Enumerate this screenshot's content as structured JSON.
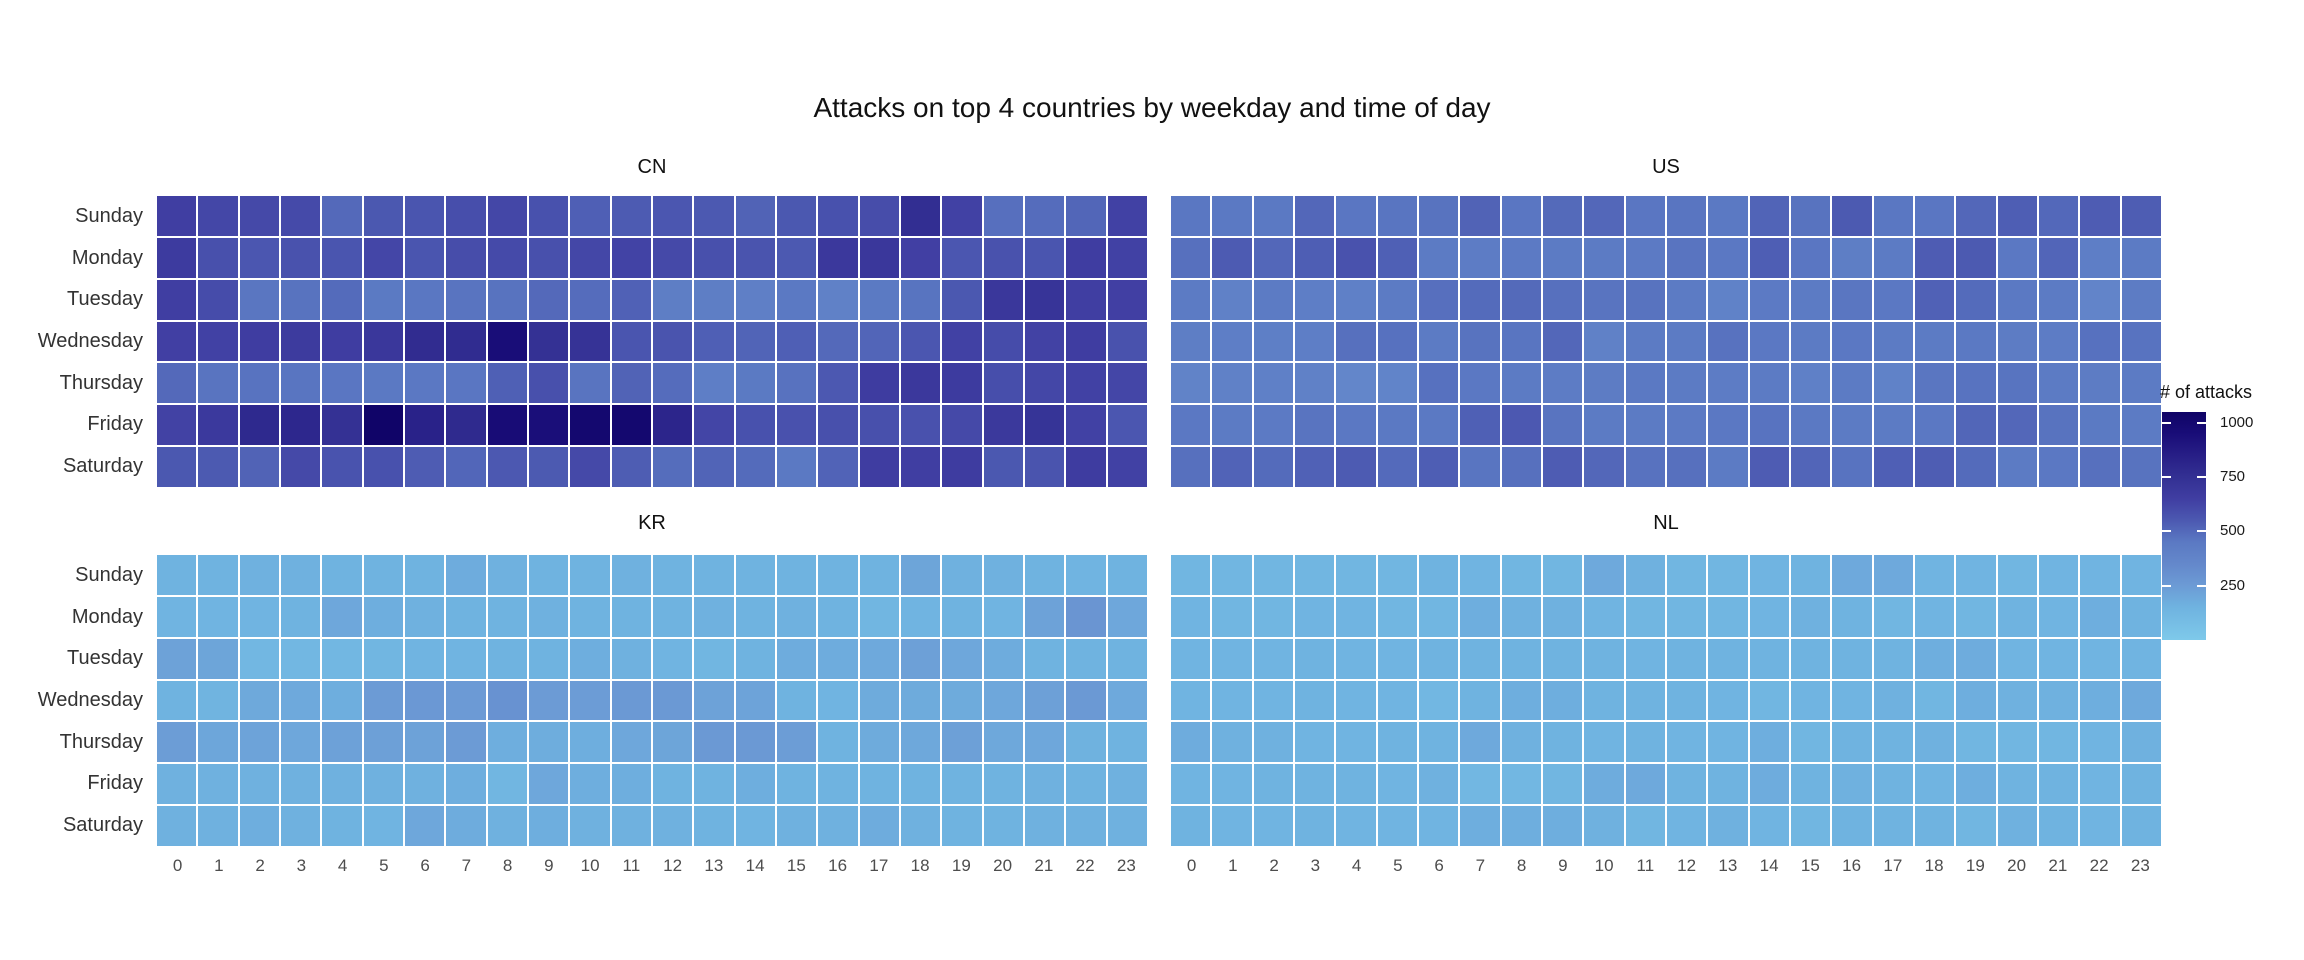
{
  "title": "Attacks on top 4 countries by weekday and time of day",
  "legend": {
    "title": "# of attacks",
    "ticks": [
      1000,
      750,
      500,
      250
    ]
  },
  "axes": {
    "weekdays": [
      "Sunday",
      "Monday",
      "Tuesday",
      "Wednesday",
      "Thursday",
      "Friday",
      "Saturday"
    ],
    "hours": [
      "0",
      "1",
      "2",
      "3",
      "4",
      "5",
      "6",
      "7",
      "8",
      "9",
      "10",
      "11",
      "12",
      "13",
      "14",
      "15",
      "16",
      "17",
      "18",
      "19",
      "20",
      "21",
      "22",
      "23"
    ]
  },
  "colors": {
    "background": "#ffffff",
    "cell_border": "#ffffff",
    "axis_text": "#333333",
    "hour_text": "#4d4d4d",
    "title_text": "#111111",
    "scale_stops": [
      [
        0,
        "#7ec9ea"
      ],
      [
        150,
        "#6fb3e0"
      ],
      [
        250,
        "#6c9bd5"
      ],
      [
        350,
        "#6488cb"
      ],
      [
        450,
        "#5b79c3"
      ],
      [
        550,
        "#4c59b1"
      ],
      [
        650,
        "#403ea2"
      ],
      [
        750,
        "#333093"
      ],
      [
        850,
        "#271e86"
      ],
      [
        950,
        "#190d78"
      ],
      [
        1050,
        "#0f0366"
      ]
    ]
  },
  "chart_data": {
    "type": "heatmap",
    "title": "Attacks on top 4 countries by weekday and time of day",
    "fill_label": "# of attacks",
    "rows": [
      "Sunday",
      "Monday",
      "Tuesday",
      "Wednesday",
      "Thursday",
      "Friday",
      "Saturday"
    ],
    "columns": [
      0,
      1,
      2,
      3,
      4,
      5,
      6,
      7,
      8,
      9,
      10,
      11,
      12,
      13,
      14,
      15,
      16,
      17,
      18,
      19,
      20,
      21,
      22,
      23
    ],
    "scale": {
      "min": 0,
      "max": 1050,
      "legend_ticks": [
        250,
        500,
        750,
        1000
      ],
      "legend_position": "right"
    },
    "facets": [
      {
        "label": "CN",
        "values": [
          [
            650,
            615,
            610,
            605,
            500,
            555,
            565,
            590,
            615,
            580,
            530,
            545,
            560,
            550,
            520,
            555,
            580,
            595,
            760,
            640,
            480,
            490,
            510,
            640
          ],
          [
            670,
            585,
            560,
            575,
            565,
            620,
            565,
            595,
            605,
            585,
            615,
            630,
            610,
            585,
            570,
            550,
            690,
            700,
            645,
            560,
            575,
            565,
            655,
            640
          ],
          [
            650,
            600,
            460,
            470,
            495,
            445,
            455,
            465,
            470,
            500,
            490,
            525,
            420,
            420,
            410,
            450,
            395,
            445,
            467,
            555,
            700,
            720,
            650,
            645
          ],
          [
            645,
            640,
            660,
            675,
            655,
            700,
            770,
            775,
            950,
            745,
            730,
            565,
            570,
            530,
            515,
            530,
            500,
            512,
            560,
            640,
            600,
            635,
            660,
            575
          ],
          [
            500,
            465,
            468,
            462,
            458,
            448,
            452,
            458,
            528,
            585,
            465,
            520,
            490,
            415,
            445,
            472,
            552,
            665,
            690,
            670,
            590,
            615,
            640,
            620
          ],
          [
            635,
            685,
            790,
            800,
            745,
            1040,
            830,
            785,
            960,
            945,
            1000,
            1000,
            810,
            625,
            580,
            578,
            585,
            585,
            578,
            608,
            688,
            725,
            640,
            560
          ],
          [
            555,
            548,
            520,
            610,
            572,
            580,
            540,
            508,
            553,
            548,
            610,
            538,
            488,
            515,
            495,
            450,
            518,
            658,
            650,
            662,
            555,
            570,
            665,
            640
          ]
        ]
      },
      {
        "label": "US",
        "values": [
          [
            455,
            450,
            450,
            505,
            458,
            462,
            470,
            520,
            458,
            498,
            505,
            458,
            462,
            450,
            515,
            470,
            548,
            456,
            458,
            505,
            535,
            502,
            540,
            538
          ],
          [
            478,
            545,
            505,
            535,
            575,
            528,
            440,
            430,
            443,
            440,
            436,
            443,
            465,
            452,
            535,
            458,
            420,
            440,
            540,
            548,
            452,
            512,
            418,
            438
          ],
          [
            437,
            395,
            435,
            415,
            403,
            438,
            480,
            495,
            498,
            478,
            466,
            470,
            437,
            393,
            443,
            440,
            460,
            452,
            525,
            495,
            450,
            438,
            375,
            432
          ],
          [
            420,
            418,
            412,
            415,
            478,
            474,
            440,
            470,
            462,
            505,
            400,
            438,
            435,
            472,
            452,
            438,
            452,
            435,
            438,
            450,
            433,
            430,
            474,
            468
          ],
          [
            385,
            395,
            402,
            400,
            365,
            378,
            474,
            452,
            438,
            428,
            433,
            450,
            438,
            430,
            440,
            403,
            435,
            390,
            460,
            468,
            467,
            438,
            433,
            438
          ],
          [
            452,
            438,
            443,
            465,
            452,
            450,
            450,
            528,
            553,
            465,
            435,
            440,
            443,
            452,
            468,
            450,
            438,
            440,
            452,
            510,
            505,
            470,
            445,
            440
          ],
          [
            477,
            518,
            495,
            525,
            545,
            497,
            535,
            463,
            477,
            540,
            505,
            472,
            478,
            438,
            540,
            512,
            468,
            530,
            538,
            495,
            438,
            452,
            477,
            470
          ]
        ]
      },
      {
        "label": "KR",
        "values": [
          [
            150,
            150,
            160,
            160,
            150,
            150,
            150,
            180,
            160,
            150,
            150,
            160,
            150,
            150,
            150,
            150,
            150,
            150,
            210,
            160,
            160,
            150,
            140,
            150
          ],
          [
            140,
            140,
            140,
            150,
            200,
            170,
            160,
            150,
            150,
            160,
            150,
            150,
            150,
            160,
            150,
            160,
            150,
            130,
            140,
            150,
            140,
            220,
            280,
            200
          ],
          [
            220,
            210,
            120,
            120,
            120,
            130,
            140,
            140,
            150,
            150,
            170,
            160,
            140,
            130,
            150,
            180,
            180,
            190,
            230,
            200,
            180,
            150,
            150,
            150
          ],
          [
            148,
            145,
            192,
            190,
            170,
            248,
            265,
            255,
            295,
            248,
            245,
            258,
            262,
            220,
            218,
            150,
            142,
            185,
            183,
            185,
            200,
            230,
            258,
            190
          ],
          [
            240,
            205,
            215,
            200,
            225,
            228,
            220,
            250,
            172,
            175,
            172,
            200,
            210,
            260,
            258,
            240,
            152,
            185,
            195,
            230,
            195,
            200,
            155,
            152
          ],
          [
            160,
            160,
            160,
            160,
            160,
            160,
            160,
            170,
            130,
            200,
            170,
            170,
            150,
            150,
            170,
            150,
            150,
            150,
            150,
            150,
            150,
            160,
            150,
            160
          ],
          [
            160,
            160,
            170,
            160,
            150,
            140,
            200,
            180,
            160,
            170,
            160,
            160,
            160,
            150,
            140,
            160,
            160,
            180,
            160,
            150,
            150,
            160,
            160,
            160
          ]
        ]
      },
      {
        "label": "NL",
        "values": [
          [
            130,
            130,
            130,
            130,
            130,
            130,
            150,
            140,
            130,
            130,
            190,
            160,
            130,
            130,
            140,
            150,
            190,
            190,
            140,
            140,
            130,
            140,
            140,
            140
          ],
          [
            140,
            130,
            130,
            140,
            140,
            130,
            130,
            170,
            160,
            160,
            140,
            130,
            130,
            130,
            140,
            160,
            150,
            130,
            140,
            130,
            150,
            140,
            170,
            150
          ],
          [
            140,
            140,
            140,
            150,
            140,
            140,
            150,
            150,
            150,
            150,
            150,
            140,
            150,
            150,
            150,
            150,
            150,
            150,
            170,
            180,
            140,
            140,
            140,
            140
          ],
          [
            140,
            140,
            140,
            150,
            140,
            140,
            120,
            150,
            170,
            170,
            150,
            150,
            150,
            140,
            130,
            140,
            140,
            160,
            130,
            170,
            160,
            160,
            170,
            190
          ],
          [
            180,
            160,
            160,
            140,
            140,
            150,
            150,
            190,
            160,
            150,
            140,
            150,
            140,
            140,
            170,
            130,
            150,
            150,
            160,
            130,
            130,
            130,
            140,
            160
          ],
          [
            140,
            140,
            150,
            150,
            150,
            140,
            160,
            120,
            120,
            130,
            180,
            190,
            150,
            150,
            180,
            150,
            160,
            150,
            140,
            170,
            150,
            150,
            140,
            150
          ],
          [
            150,
            140,
            140,
            150,
            140,
            140,
            140,
            170,
            170,
            170,
            160,
            130,
            140,
            160,
            140,
            130,
            150,
            150,
            150,
            130,
            160,
            150,
            140,
            150
          ]
        ]
      }
    ]
  }
}
